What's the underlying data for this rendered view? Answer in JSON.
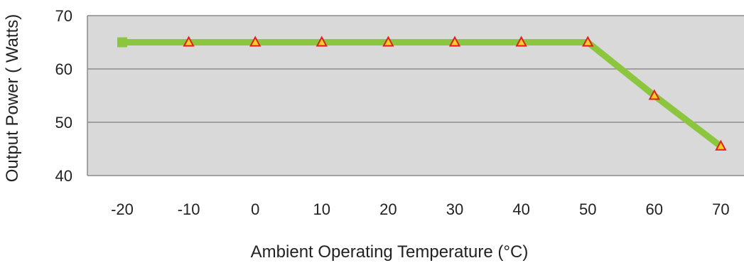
{
  "chart_data": {
    "type": "line",
    "title": "",
    "xlabel": "Ambient Operating Temperature (°C)",
    "ylabel": "Output Power ( Watts)",
    "x_tick_labels": [
      "-20",
      "-10",
      "0",
      "10",
      "20",
      "30",
      "40",
      "50",
      "60",
      "70"
    ],
    "y_tick_labels": [
      "40",
      "50",
      "60",
      "70"
    ],
    "ylim": [
      40,
      70
    ],
    "grid": true,
    "legend": "none",
    "series": [
      {
        "x": [
          -20,
          -10,
          0,
          10,
          20,
          30,
          40,
          50,
          60,
          70
        ],
        "y": [
          65,
          65,
          65,
          65,
          65,
          65,
          65,
          65,
          55,
          45.5
        ],
        "markers": [
          "square",
          "triangle",
          "triangle",
          "triangle",
          "triangle",
          "triangle",
          "triangle",
          "triangle",
          "triangle",
          "triangle"
        ]
      }
    ],
    "colors": {
      "plot_background": "#d9d9d9",
      "gridline": "#8c8c8c",
      "line": "#8cc63f",
      "marker_fill": "#f4cf2a",
      "marker_stroke": "#e0201a"
    }
  }
}
